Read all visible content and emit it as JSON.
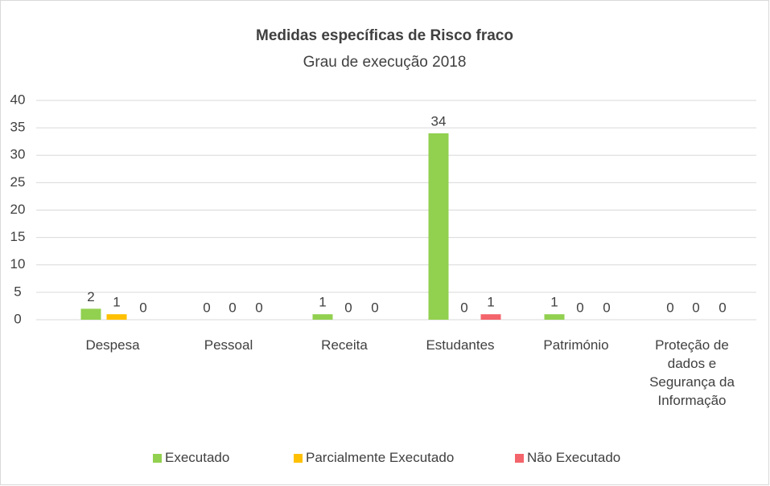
{
  "chart_data": {
    "type": "bar",
    "title": "Medidas específicas de Risco fraco",
    "subtitle": "Grau de execução 2018",
    "categories": [
      "Despesa",
      "Pessoal",
      "Receita",
      "Estudantes",
      "Património",
      "Proteção de dados e Segurança da Informação"
    ],
    "series": [
      {
        "name": "Executado",
        "color": "#92d050",
        "values": [
          2,
          0,
          1,
          34,
          1,
          0
        ]
      },
      {
        "name": "Parcialmente Executado",
        "color": "#ffc000",
        "values": [
          1,
          0,
          0,
          0,
          0,
          0
        ]
      },
      {
        "name": "Não Executado",
        "color": "#f4646b",
        "values": [
          0,
          0,
          0,
          1,
          0,
          0
        ]
      }
    ],
    "ylim": [
      0,
      40
    ],
    "yticks": [
      0,
      5,
      10,
      15,
      20,
      25,
      30,
      35,
      40
    ],
    "grid": true,
    "legend": "bottom"
  }
}
